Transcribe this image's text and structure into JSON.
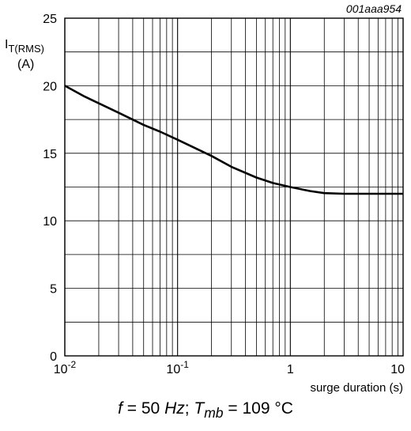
{
  "chart_data": {
    "type": "line",
    "x_scale": "log",
    "xlim": [
      0.01,
      10
    ],
    "ylim": [
      0,
      25
    ],
    "grid": true,
    "figure_code": "001aaa954",
    "ylabel_main": "I",
    "ylabel_sub": "T(RMS)",
    "ylabel_unit": "(A)",
    "xlabel": "surge duration (s)",
    "x_ticks": [
      {
        "value": 0.01,
        "base": "10",
        "exp": "-2"
      },
      {
        "value": 0.1,
        "base": "10",
        "exp": "-1"
      },
      {
        "value": 1,
        "base": "1",
        "exp": ""
      },
      {
        "value": 10,
        "base": "10",
        "exp": ""
      }
    ],
    "y_ticks": [
      0,
      5,
      10,
      15,
      20,
      25
    ],
    "series": [
      {
        "x": [
          0.01,
          0.015,
          0.02,
          0.03,
          0.05,
          0.07,
          0.1,
          0.15,
          0.2,
          0.3,
          0.5,
          0.7,
          1,
          1.5,
          2,
          3,
          5,
          10
        ],
        "y": [
          20.0,
          19.2,
          18.7,
          18.0,
          17.1,
          16.6,
          16.0,
          15.3,
          14.8,
          14.0,
          13.2,
          12.8,
          12.5,
          12.2,
          12.05,
          12.0,
          12.0,
          12.0
        ]
      }
    ],
    "caption": {
      "f_var": "f",
      "f_eq": " = 50 ",
      "f_unit": "Hz",
      "sep": "; ",
      "t_var": "T",
      "t_sub": "mb",
      "t_eq": " = 109 °C"
    }
  }
}
